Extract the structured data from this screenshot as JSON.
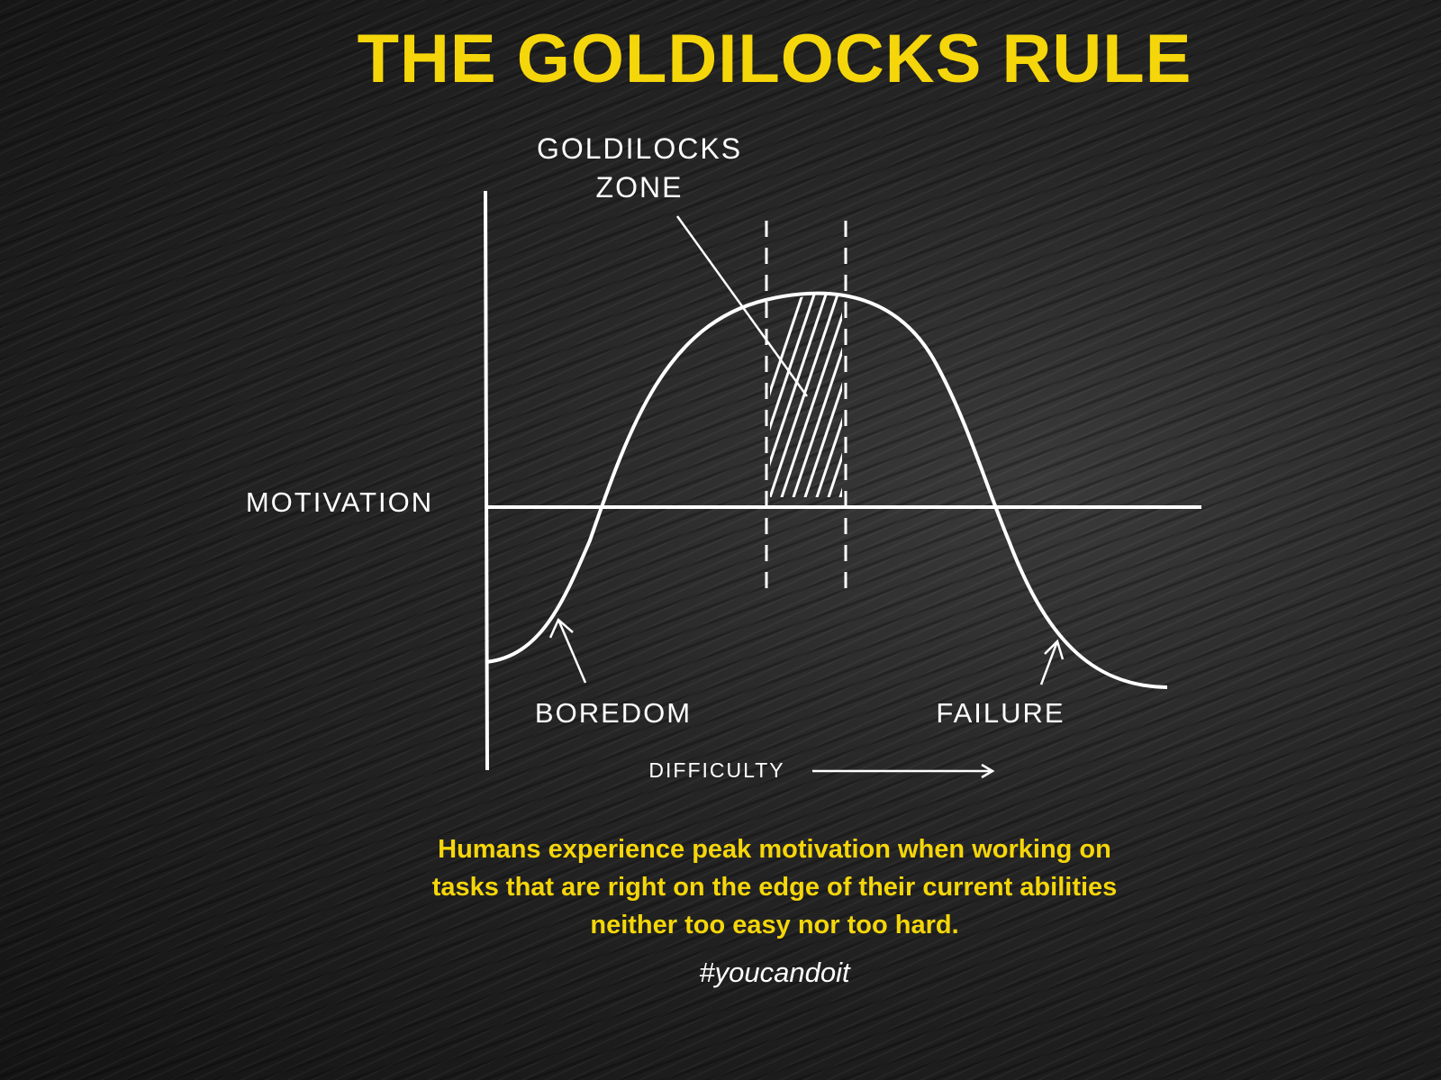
{
  "title": "THE GOLDILOCKS RULE",
  "diagram": {
    "zone_label_line1": "GOLDILOCKS",
    "zone_label_line2": "ZONE",
    "y_label": "MOTIVATION",
    "x_label": "DIFFICULTY",
    "left_label": "BOREDOM",
    "right_label": "FAILURE"
  },
  "caption": {
    "line1": "Humans experience peak motivation when  working on",
    "line2": "tasks that are right on the edge of their current abilities",
    "line3": "neither too easy nor too hard."
  },
  "hashtag": "#youcandoit",
  "colors": {
    "accent": "#f5d60a",
    "lines": "#ffffff",
    "background": "#1c1c1c"
  }
}
